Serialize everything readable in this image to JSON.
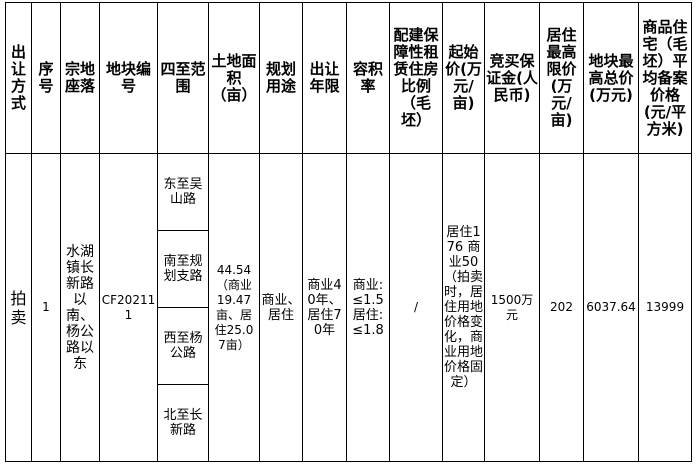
{
  "headers": [
    "出让方式",
    "序号",
    "宗地座落",
    "地块编号",
    "四至范围",
    "土地面积（亩）",
    "规划用途",
    "出让年限",
    "容积率",
    "配建保障性租赁住房比例（毛坯）",
    "起始价(万元/亩)",
    "竞买保证金(人民币)",
    "居住最高限价(万元/亩)",
    "地块最高总价(万元)",
    "商品住宅（毛坯）平均备案价格(元/平方米)"
  ],
  "row": {
    "method": "拍卖",
    "index": "1",
    "location": "水湖镇长新路以南、杨公路以东",
    "parcel_code": "CF202111",
    "boundaries": [
      "东至吴山路",
      "南至规划支路",
      "西至杨公路",
      "北至长新路"
    ],
    "area": "44.54（商业19.47亩、居住25.07亩）",
    "usage": "商业、居住",
    "term": "商业40年、居住70年",
    "far": "商业:≤1.5 居住:≤1.8",
    "affordable_ratio": "/",
    "start_price": "居住176 商业50（拍卖时，居住用地价格变化，商业用地价格固定）",
    "deposit": "1500万元",
    "max_residential_price": "202",
    "max_total_price": "6037.64",
    "avg_price": "13999"
  }
}
